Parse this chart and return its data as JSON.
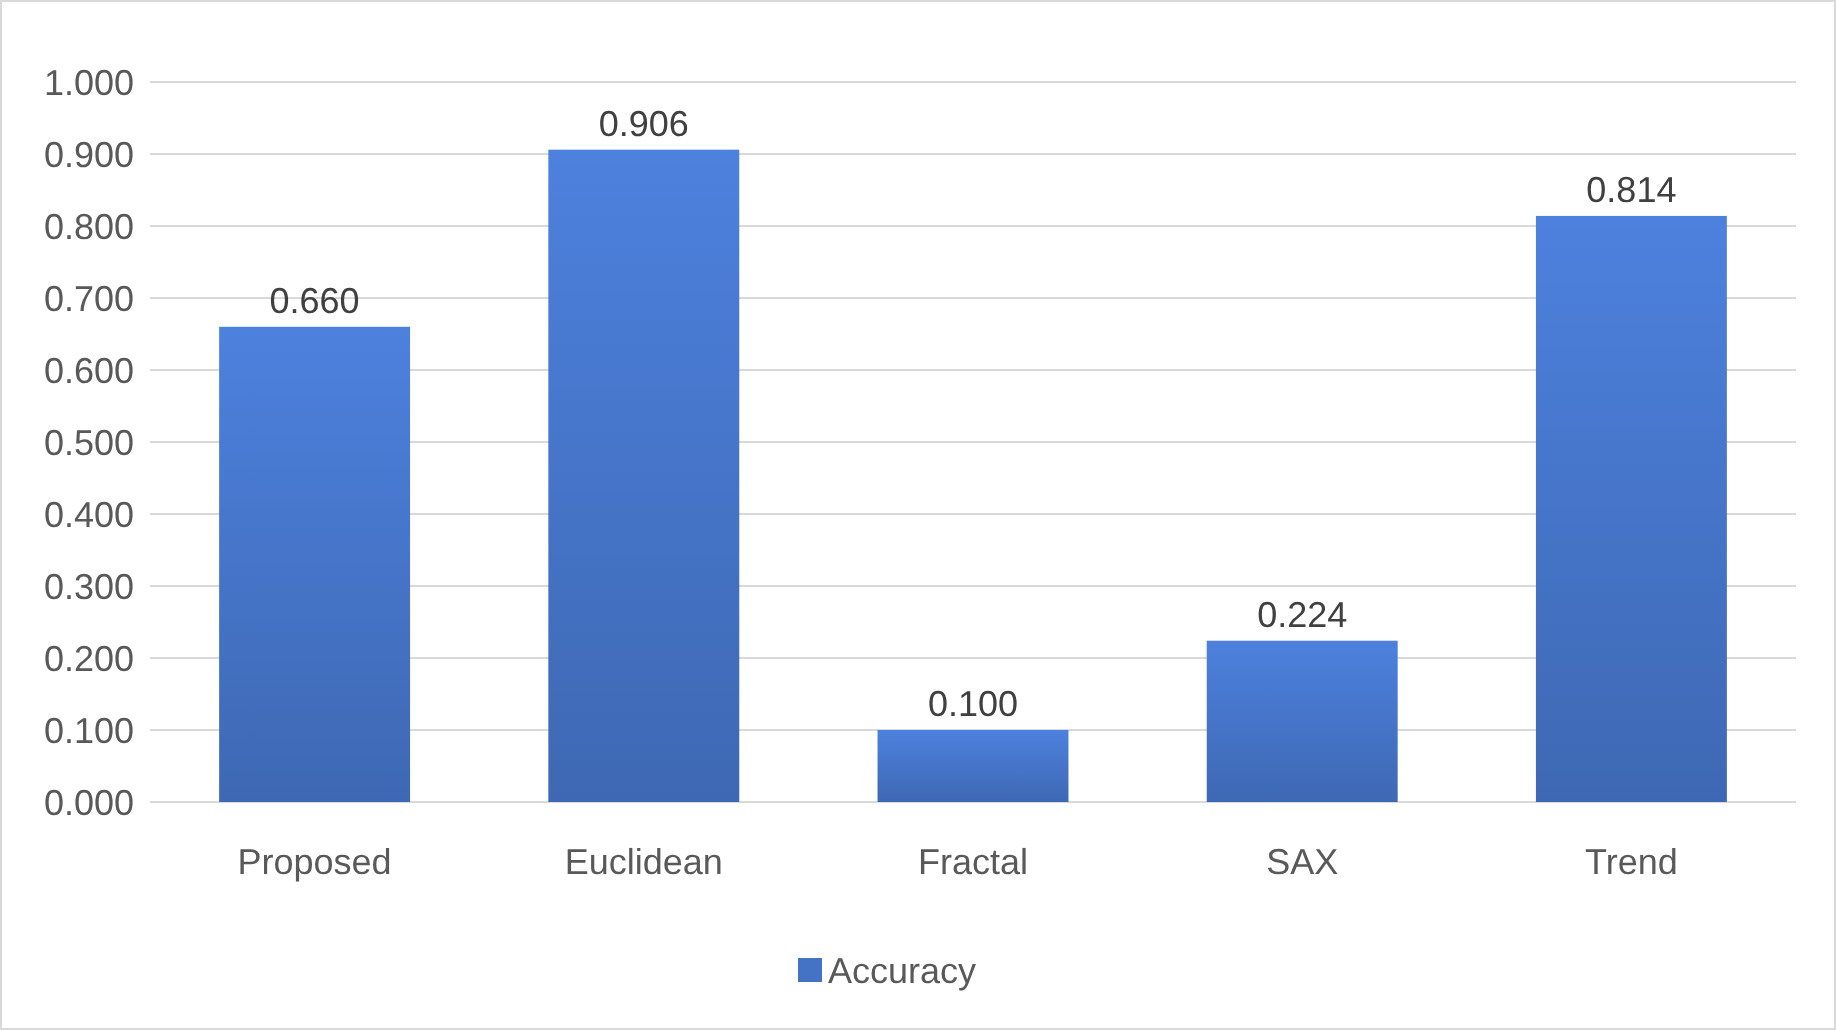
{
  "chart_data": {
    "type": "bar",
    "categories": [
      "Proposed",
      "Euclidean",
      "Fractal",
      "SAX",
      "Trend"
    ],
    "series": [
      {
        "name": "Accuracy",
        "color": "#4472c4",
        "values": [
          0.66,
          0.906,
          0.1,
          0.224,
          0.814
        ],
        "value_labels": [
          "0.660",
          "0.906",
          "0.100",
          "0.224",
          "0.814"
        ]
      }
    ],
    "ylim": [
      0,
      1
    ],
    "yticks": [
      {
        "value": 0,
        "label": "0.000"
      },
      {
        "value": 0.1,
        "label": "0.100"
      },
      {
        "value": 0.2,
        "label": "0.200"
      },
      {
        "value": 0.3,
        "label": "0.300"
      },
      {
        "value": 0.4,
        "label": "0.400"
      },
      {
        "value": 0.5,
        "label": "0.500"
      },
      {
        "value": 0.6,
        "label": "0.600"
      },
      {
        "value": 0.7,
        "label": "0.700"
      },
      {
        "value": 0.8,
        "label": "0.800"
      },
      {
        "value": 0.9,
        "label": "0.900"
      },
      {
        "value": 1,
        "label": "1.000"
      }
    ],
    "grid": "y",
    "legend": "bottom"
  }
}
